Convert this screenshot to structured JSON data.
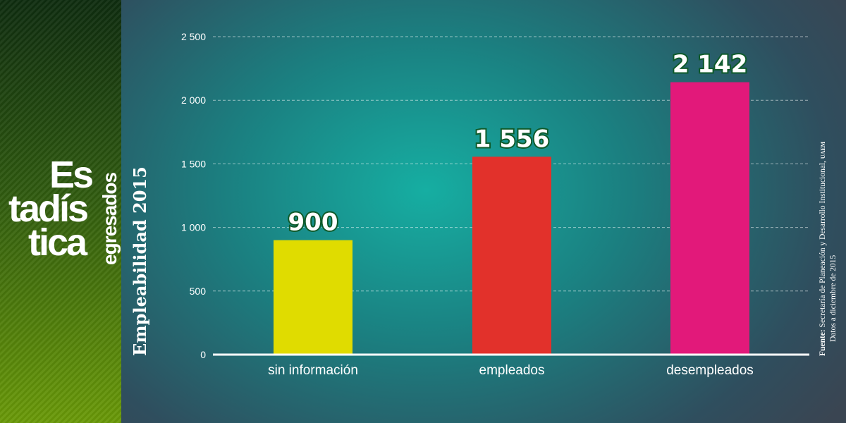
{
  "sidebar": {
    "logo_lines": [
      "Es",
      "tadís",
      "tica"
    ],
    "logo_subtitle": "egresados"
  },
  "source": {
    "label": "Fuente:",
    "text": "Secretaría de Planeación y Desarrollo Institucional,",
    "org": "UAEM",
    "date": "Datos a diciembre de 2015"
  },
  "chart_data": {
    "type": "bar",
    "title": "",
    "ylabel": "Empleabilidad 2015",
    "xlabel": "",
    "categories": [
      "sin información",
      "empleados",
      "desempleados"
    ],
    "values": [
      900,
      1556,
      2142
    ],
    "data_labels": [
      "900",
      "1 556",
      "2 142"
    ],
    "colors": [
      "#e0dc00",
      "#e2312b",
      "#e2197a"
    ],
    "ylim": [
      0,
      2500
    ],
    "yticks": [
      0,
      500,
      1000,
      1500,
      2000,
      2500
    ],
    "ytick_labels": [
      "0",
      "500",
      "1 000",
      "1 500",
      "2 000",
      "2 500"
    ],
    "grid": true
  }
}
